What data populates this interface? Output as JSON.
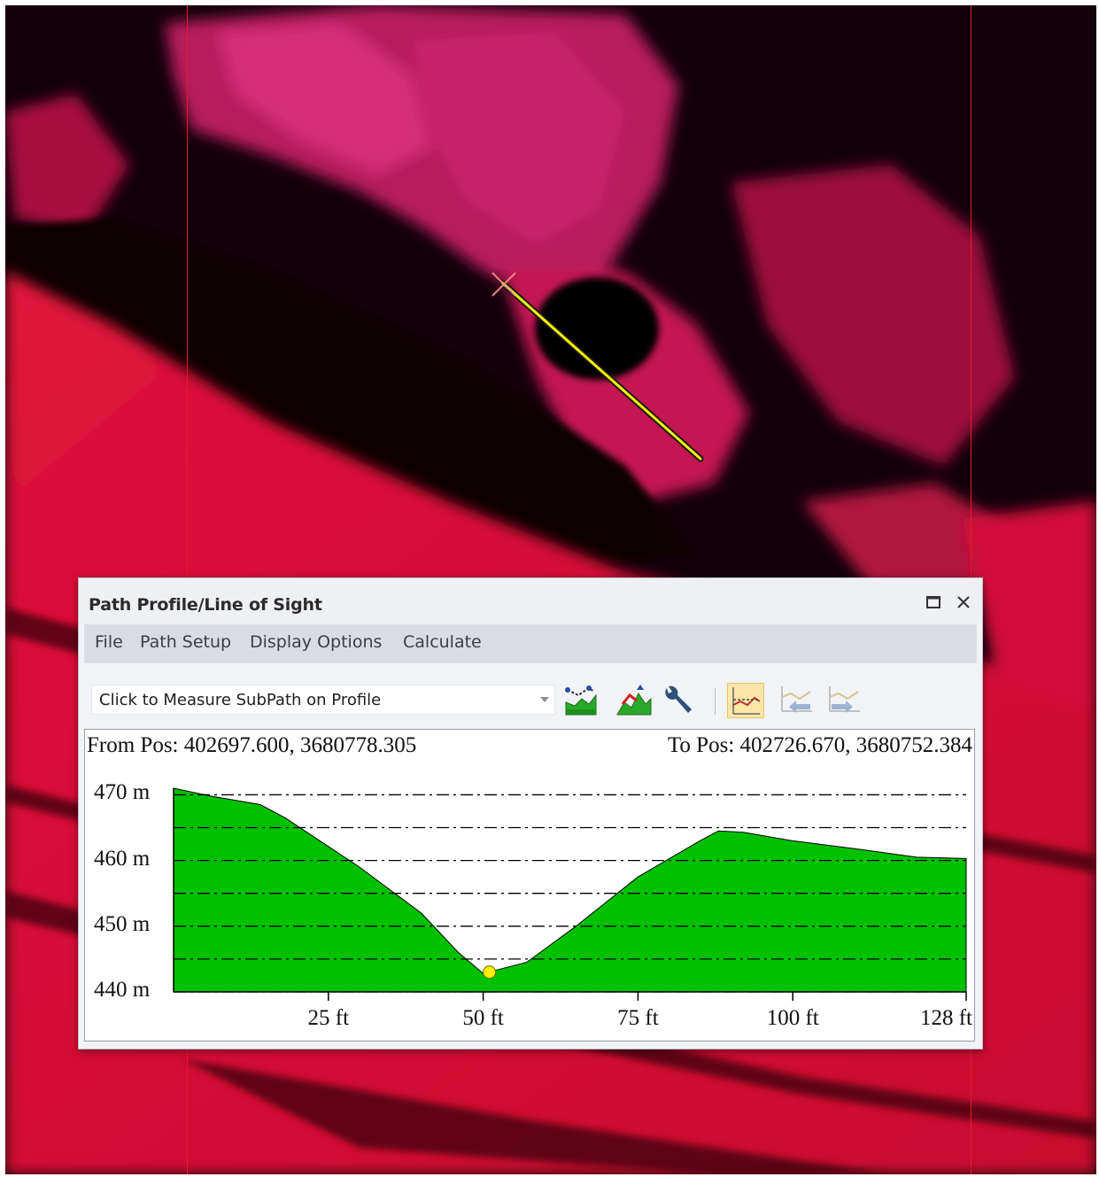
{
  "window": {
    "title": "Path Profile/Line of Sight",
    "maximize_icon": "maximize-icon",
    "close_icon": "close-icon"
  },
  "menu": {
    "items": [
      "File",
      "Path Setup",
      "Display Options",
      "Calculate"
    ]
  },
  "toolbar": {
    "mode_select": {
      "value": "Click to Measure SubPath on Profile"
    },
    "buttons": [
      "measure-profile-icon",
      "terrain-profile-icon",
      "settings-wrench-icon",
      "line-of-sight-icon",
      "previous-path-icon",
      "next-path-icon"
    ]
  },
  "colors": {
    "terrain_fill": "#00c000",
    "map_accent": "#e8193c",
    "path_line": "#f5f500"
  },
  "profile": {
    "from_label": "From Pos: 402697.600, 3680778.305",
    "to_label": "To Pos: 402726.670, 3680752.384"
  },
  "chart_data": {
    "type": "area",
    "title": "",
    "xlabel": "",
    "ylabel": "",
    "x_unit": "ft",
    "y_unit": "m",
    "xlim": [
      0,
      128
    ],
    "ylim": [
      440,
      471
    ],
    "y_ticks": [
      470,
      460,
      450,
      440
    ],
    "y_tick_labels": [
      "470 m",
      "460 m",
      "450 m",
      "440 m"
    ],
    "y_gridlines": [
      470,
      465,
      460,
      455,
      450,
      445,
      440
    ],
    "grid": true,
    "x_ticks": [
      25,
      50,
      75,
      100,
      128
    ],
    "x_tick_labels": [
      "25 ft",
      "50 ft",
      "75 ft",
      "100 ft",
      "128 ft"
    ],
    "series": [
      {
        "x": [
          0,
          6,
          14,
          18,
          30,
          40,
          46,
          50,
          57,
          65,
          75,
          85,
          88,
          92,
          100,
          110,
          120,
          128
        ],
        "y": [
          471,
          469.8,
          468.5,
          466.5,
          459,
          452,
          446,
          442.8,
          444.5,
          450,
          457.5,
          463,
          464.5,
          464.3,
          463,
          461.8,
          460.5,
          460.3
        ]
      }
    ],
    "marker": {
      "x": 51,
      "y": 443
    }
  }
}
